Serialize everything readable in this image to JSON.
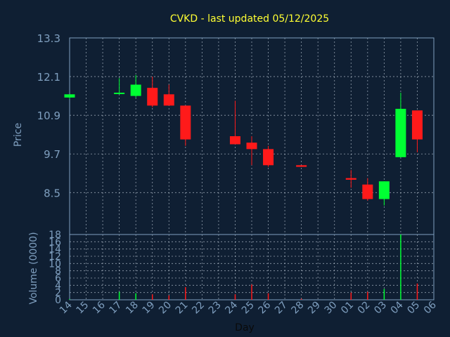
{
  "chart_data": {
    "type": "candlestick",
    "title": "CVKD - last updated 05/12/2025",
    "ylabel_price": "Price",
    "ylabel_volume": "Volume (0000)",
    "xlabel": "Day",
    "price_ylim": [
      7.2,
      13.3
    ],
    "price_ticks": [
      "13.3",
      "12.1",
      "10.9",
      "9.7",
      "8.5"
    ],
    "volume_ylim": [
      0,
      18
    ],
    "volume_ticks": [
      "18",
      "16",
      "14",
      "12",
      "10",
      "8",
      "6",
      "4",
      "2",
      "0"
    ],
    "x_ticks": [
      "14",
      "15",
      "16",
      "17",
      "18",
      "19",
      "20",
      "21",
      "22",
      "23",
      "24",
      "25",
      "26",
      "27",
      "28",
      "29",
      "30",
      "01",
      "02",
      "03",
      "04",
      "05",
      "06"
    ],
    "colors": {
      "background": "#0f1f33",
      "up": "#00ff33",
      "down": "#ff1a1a",
      "title": "#ffff33",
      "axis_text": "#7f9fbf",
      "grid": "#c8d4e0"
    },
    "candles": [
      {
        "day": "14",
        "open": 11.45,
        "high": 11.55,
        "low": 11.4,
        "close": 11.55,
        "volume": 0.2
      },
      {
        "day": "17",
        "open": 11.6,
        "high": 12.05,
        "low": 11.55,
        "close": 11.6,
        "volume": 2.2
      },
      {
        "day": "18",
        "open": 11.5,
        "high": 12.15,
        "low": 11.45,
        "close": 11.85,
        "volume": 1.8
      },
      {
        "day": "19",
        "open": 11.75,
        "high": 12.1,
        "low": 11.15,
        "close": 11.2,
        "volume": 1.5
      },
      {
        "day": "20",
        "open": 11.55,
        "high": 11.85,
        "low": 11.2,
        "close": 11.2,
        "volume": 1.2
      },
      {
        "day": "21",
        "open": 11.2,
        "high": 11.2,
        "low": 9.95,
        "close": 10.15,
        "volume": 3.5
      },
      {
        "day": "24",
        "open": 10.25,
        "high": 11.35,
        "low": 10.0,
        "close": 10.0,
        "volume": 1.5
      },
      {
        "day": "25",
        "open": 10.05,
        "high": 10.25,
        "low": 9.35,
        "close": 9.85,
        "volume": 4.2
      },
      {
        "day": "26",
        "open": 9.85,
        "high": 9.95,
        "low": 9.3,
        "close": 9.35,
        "volume": 1.8
      },
      {
        "day": "28",
        "open": 9.35,
        "high": 9.35,
        "low": 9.3,
        "close": 9.3,
        "volume": 0.3
      },
      {
        "day": "01",
        "open": 8.95,
        "high": 9.2,
        "low": 8.65,
        "close": 8.9,
        "volume": 2.0
      },
      {
        "day": "02",
        "open": 8.75,
        "high": 8.95,
        "low": 8.25,
        "close": 8.3,
        "volume": 2.2
      },
      {
        "day": "03",
        "open": 8.3,
        "high": 8.85,
        "low": 8.1,
        "close": 8.85,
        "volume": 3.0
      },
      {
        "day": "04",
        "open": 9.6,
        "high": 11.6,
        "low": 9.6,
        "close": 11.1,
        "volume": 18.0
      },
      {
        "day": "05",
        "open": 11.05,
        "high": 11.05,
        "low": 9.75,
        "close": 10.15,
        "volume": 4.5
      }
    ]
  }
}
